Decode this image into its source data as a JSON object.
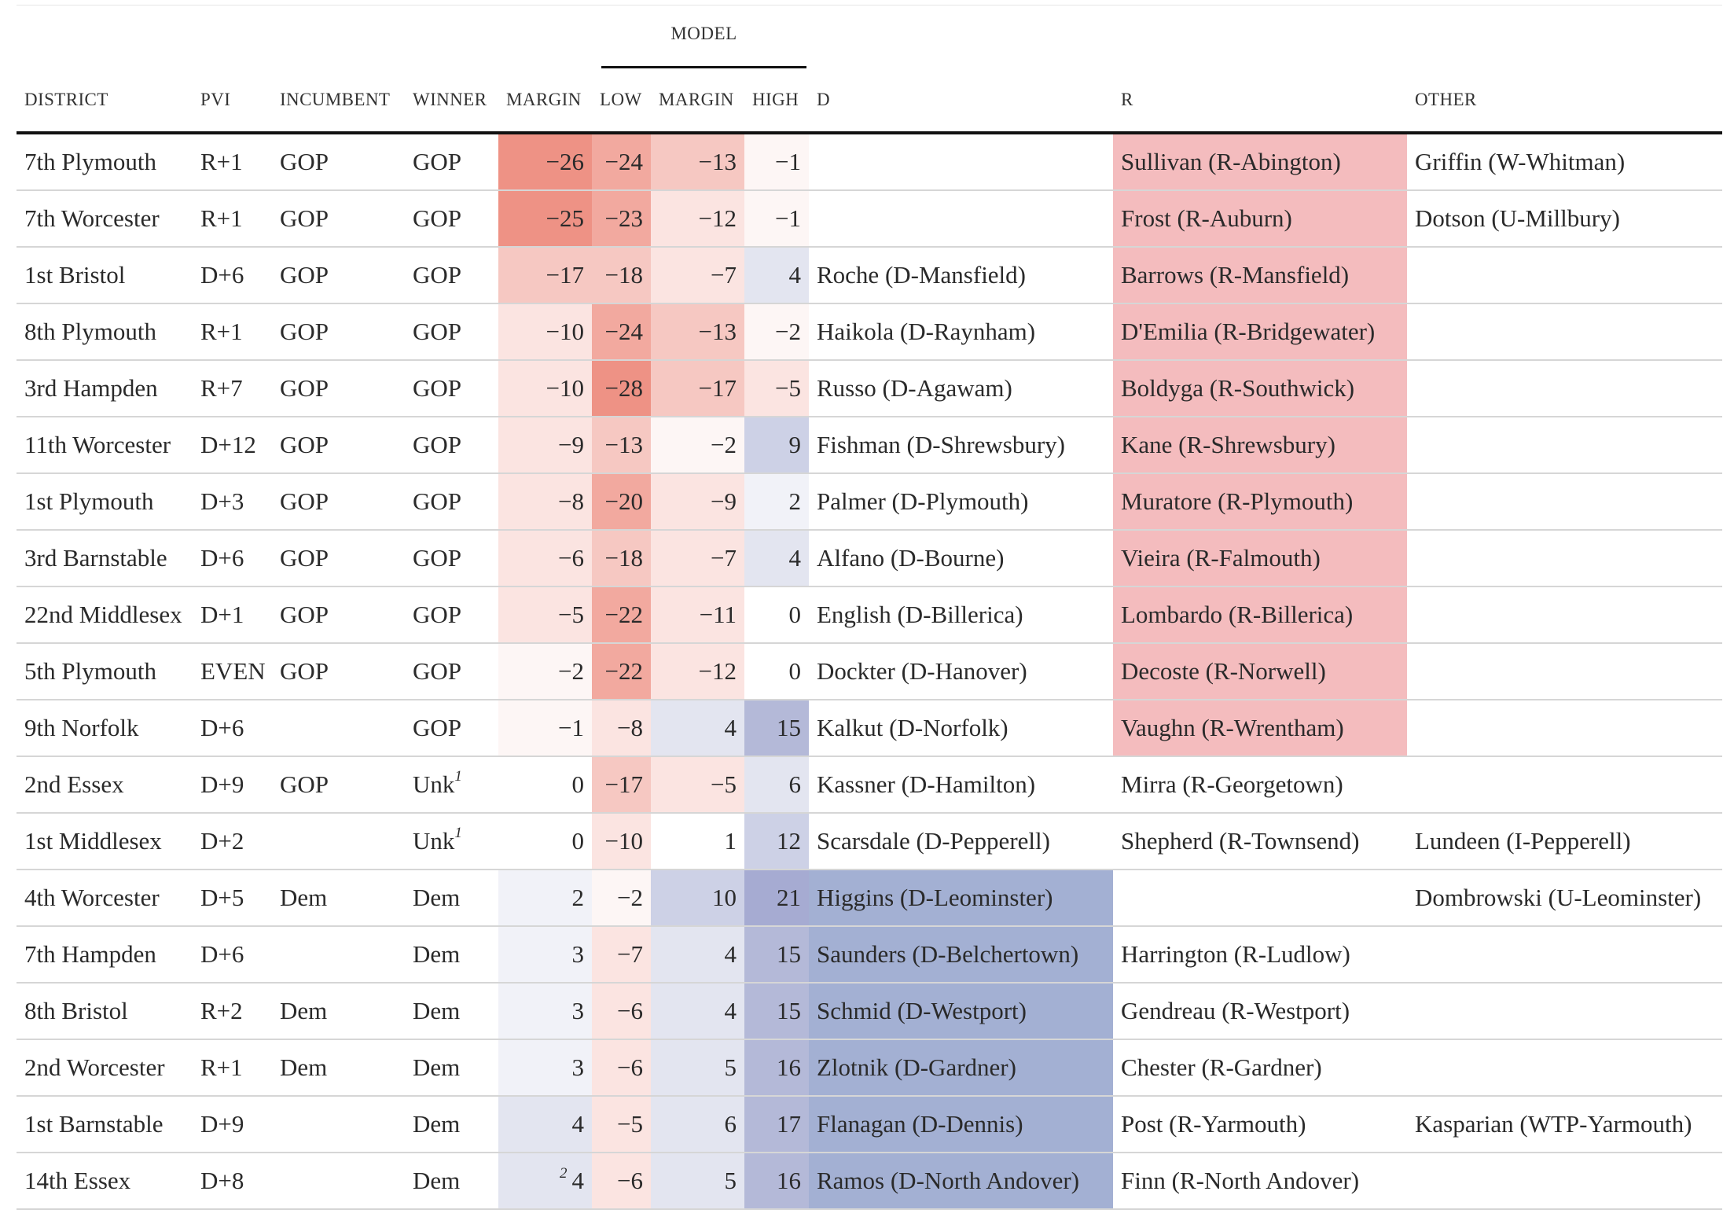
{
  "header": {
    "spanner": "MODEL",
    "columns": [
      "DISTRICT",
      "PVI",
      "INCUMBENT",
      "WINNER",
      "MARGIN",
      "LOW",
      "MARGIN",
      "HIGH",
      "D",
      "R",
      "OTHER"
    ]
  },
  "rows": [
    {
      "district": "7th Plymouth",
      "pvi": "R+1",
      "incumbent": "GOP",
      "winner": "GOP",
      "margin": "−26",
      "low": "−24",
      "model_margin": "−13",
      "high": "−1",
      "d": "",
      "r": "Sullivan (R-Abington)",
      "other": "Griffin (W-Whitman)"
    },
    {
      "district": "7th Worcester",
      "pvi": "R+1",
      "incumbent": "GOP",
      "winner": "GOP",
      "margin": "−25",
      "low": "−23",
      "model_margin": "−12",
      "high": "−1",
      "d": "",
      "r": "Frost (R-Auburn)",
      "other": "Dotson (U-Millbury)"
    },
    {
      "district": "1st Bristol",
      "pvi": "D+6",
      "incumbent": "GOP",
      "winner": "GOP",
      "margin": "−17",
      "low": "−18",
      "model_margin": "−7",
      "high": "4",
      "d": "Roche (D-Mansfield)",
      "r": "Barrows (R-Mansfield)",
      "other": ""
    },
    {
      "district": "8th Plymouth",
      "pvi": "R+1",
      "incumbent": "GOP",
      "winner": "GOP",
      "margin": "−10",
      "low": "−24",
      "model_margin": "−13",
      "high": "−2",
      "d": "Haikola (D-Raynham)",
      "r": "D'Emilia (R-Bridgewater)",
      "other": ""
    },
    {
      "district": "3rd Hampden",
      "pvi": "R+7",
      "incumbent": "GOP",
      "winner": "GOP",
      "margin": "−10",
      "low": "−28",
      "model_margin": "−17",
      "high": "−5",
      "d": "Russo (D-Agawam)",
      "r": "Boldyga (R-Southwick)",
      "other": ""
    },
    {
      "district": "11th Worcester",
      "pvi": "D+12",
      "incumbent": "GOP",
      "winner": "GOP",
      "margin": "−9",
      "low": "−13",
      "model_margin": "−2",
      "high": "9",
      "d": "Fishman (D-Shrewsbury)",
      "r": "Kane (R-Shrewsbury)",
      "other": ""
    },
    {
      "district": "1st Plymouth",
      "pvi": "D+3",
      "incumbent": "GOP",
      "winner": "GOP",
      "margin": "−8",
      "low": "−20",
      "model_margin": "−9",
      "high": "2",
      "d": "Palmer (D-Plymouth)",
      "r": "Muratore (R-Plymouth)",
      "other": ""
    },
    {
      "district": "3rd Barnstable",
      "pvi": "D+6",
      "incumbent": "GOP",
      "winner": "GOP",
      "margin": "−6",
      "low": "−18",
      "model_margin": "−7",
      "high": "4",
      "d": "Alfano (D-Bourne)",
      "r": "Vieira (R-Falmouth)",
      "other": ""
    },
    {
      "district": "22nd Middlesex",
      "pvi": "D+1",
      "incumbent": "GOP",
      "winner": "GOP",
      "margin": "−5",
      "low": "−22",
      "model_margin": "−11",
      "high": "0",
      "d": "English (D-Billerica)",
      "r": "Lombardo (R-Billerica)",
      "other": ""
    },
    {
      "district": "5th Plymouth",
      "pvi": "EVEN",
      "incumbent": "GOP",
      "winner": "GOP",
      "margin": "−2",
      "low": "−22",
      "model_margin": "−12",
      "high": "0",
      "d": "Dockter (D-Hanover)",
      "r": "Decoste (R-Norwell)",
      "other": ""
    },
    {
      "district": "9th Norfolk",
      "pvi": "D+6",
      "incumbent": "",
      "winner": "GOP",
      "margin": "−1",
      "low": "−8",
      "model_margin": "4",
      "high": "15",
      "d": "Kalkut (D-Norfolk)",
      "r": "Vaughn (R-Wrentham)",
      "other": ""
    },
    {
      "district": "2nd Essex",
      "pvi": "D+9",
      "incumbent": "GOP",
      "winner": "Unk",
      "winner_fn": "1",
      "margin": "0",
      "low": "−17",
      "model_margin": "−5",
      "high": "6",
      "d": "Kassner (D-Hamilton)",
      "r": "Mirra (R-Georgetown)",
      "other": ""
    },
    {
      "district": "1st Middlesex",
      "pvi": "D+2",
      "incumbent": "",
      "winner": "Unk",
      "winner_fn": "1",
      "margin": "0",
      "low": "−10",
      "model_margin": "1",
      "high": "12",
      "d": "Scarsdale (D-Pepperell)",
      "r": "Shepherd (R-Townsend)",
      "other": "Lundeen (I-Pepperell)"
    },
    {
      "district": "4th Worcester",
      "pvi": "D+5",
      "incumbent": "Dem",
      "winner": "Dem",
      "margin": "2",
      "low": "−2",
      "model_margin": "10",
      "high": "21",
      "d": "Higgins (D-Leominster)",
      "r": "",
      "other": "Dombrowski (U-Leominster)"
    },
    {
      "district": "7th Hampden",
      "pvi": "D+6",
      "incumbent": "",
      "winner": "Dem",
      "margin": "3",
      "low": "−7",
      "model_margin": "4",
      "high": "15",
      "d": "Saunders (D-Belchertown)",
      "r": "Harrington (R-Ludlow)",
      "other": ""
    },
    {
      "district": "8th Bristol",
      "pvi": "R+2",
      "incumbent": "Dem",
      "winner": "Dem",
      "margin": "3",
      "low": "−6",
      "model_margin": "4",
      "high": "15",
      "d": "Schmid (D-Westport)",
      "r": "Gendreau (R-Westport)",
      "other": ""
    },
    {
      "district": "2nd Worcester",
      "pvi": "R+1",
      "incumbent": "Dem",
      "winner": "Dem",
      "margin": "3",
      "low": "−6",
      "model_margin": "5",
      "high": "16",
      "d": "Zlotnik (D-Gardner)",
      "r": "Chester (R-Gardner)",
      "other": ""
    },
    {
      "district": "1st Barnstable",
      "pvi": "D+9",
      "incumbent": "",
      "winner": "Dem",
      "margin": "4",
      "low": "−5",
      "model_margin": "6",
      "high": "17",
      "d": "Flanagan (D-Dennis)",
      "r": "Post (R-Yarmouth)",
      "other": "Kasparian (WTP-Yarmouth)"
    },
    {
      "district": "14th Essex",
      "pvi": "D+8",
      "incumbent": "",
      "winner": "Dem",
      "margin": "4",
      "margin_fn": "2",
      "low": "−6",
      "model_margin": "5",
      "high": "16",
      "d": "Ramos (D-North Andover)",
      "r": "Finn (R-North Andover)",
      "other": ""
    }
  ],
  "colors": {
    "red_scale": [
      "#fdf6f5",
      "#fbe4e1",
      "#f6c8c2",
      "#f2a99f",
      "#ee9285"
    ],
    "blue_scale": [
      "#f1f2f8",
      "#e3e5f0",
      "#cdd1e6",
      "#b4b9d8",
      "#a6abd2"
    ],
    "r_winner_fill": "#f4bcbe",
    "d_winner_fill": "#a3b0d3"
  }
}
